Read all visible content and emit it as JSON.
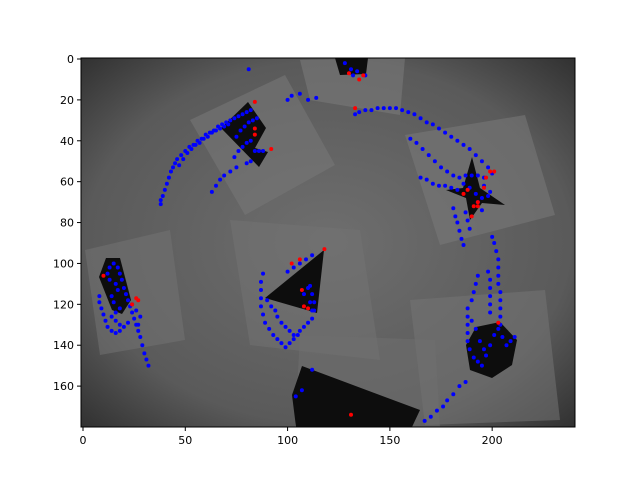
{
  "chart_data": {
    "type": "scatter",
    "title": "",
    "xlabel": "",
    "ylabel": "",
    "xlim": [
      0,
      240
    ],
    "ylim": [
      180,
      0
    ],
    "x_ticks": [
      "0",
      "50",
      "100",
      "150",
      "200"
    ],
    "y_ticks": [
      "0",
      "20",
      "40",
      "60",
      "80",
      "100",
      "120",
      "140",
      "160"
    ],
    "x_tick_values": [
      0,
      50,
      100,
      150,
      200
    ],
    "y_tick_values": [
      0,
      20,
      40,
      60,
      80,
      100,
      120,
      140,
      160
    ],
    "grid": false,
    "background": "grayscale camera image of black shapes on paper",
    "colors": {
      "blue": "#0000ff",
      "red": "#ff0000"
    },
    "series": [
      {
        "color": "#0000ff",
        "points": [
          [
            38,
            71
          ],
          [
            38,
            69
          ],
          [
            39,
            67
          ],
          [
            40,
            64
          ],
          [
            41,
            61
          ],
          [
            42,
            58
          ],
          [
            43,
            55
          ],
          [
            44,
            53
          ],
          [
            45,
            51
          ],
          [
            46,
            49
          ],
          [
            48,
            47
          ],
          [
            50,
            45
          ],
          [
            52,
            43
          ],
          [
            54,
            42
          ],
          [
            56,
            40
          ],
          [
            58,
            39
          ],
          [
            60,
            37
          ],
          [
            62,
            36
          ],
          [
            64,
            35
          ],
          [
            66,
            33
          ],
          [
            68,
            32
          ],
          [
            70,
            31
          ],
          [
            72,
            30
          ],
          [
            74,
            29
          ],
          [
            76,
            28
          ],
          [
            78,
            27
          ],
          [
            80,
            26
          ],
          [
            82,
            25
          ],
          [
            47,
            52
          ],
          [
            49,
            49
          ],
          [
            51,
            46
          ],
          [
            53,
            44
          ],
          [
            55,
            42
          ],
          [
            57,
            41
          ],
          [
            59,
            39
          ],
          [
            61,
            38
          ],
          [
            63,
            36
          ],
          [
            65,
            35
          ],
          [
            67,
            34
          ],
          [
            69,
            33
          ],
          [
            71,
            32
          ],
          [
            75,
            38
          ],
          [
            77,
            35
          ],
          [
            79,
            33
          ],
          [
            81,
            31
          ],
          [
            83,
            30
          ],
          [
            85,
            29
          ],
          [
            74,
            48
          ],
          [
            76,
            45
          ],
          [
            78,
            43
          ],
          [
            80,
            41
          ],
          [
            82,
            40
          ],
          [
            84,
            45
          ],
          [
            86,
            45
          ],
          [
            88,
            45
          ],
          [
            63,
            65
          ],
          [
            65,
            62
          ],
          [
            67,
            59
          ],
          [
            69,
            57
          ],
          [
            72,
            55
          ],
          [
            75,
            53
          ],
          [
            80,
            51
          ],
          [
            82,
            50
          ],
          [
            81,
            5
          ],
          [
            100,
            20
          ],
          [
            102,
            18
          ],
          [
            106,
            17
          ],
          [
            110,
            20
          ],
          [
            114,
            19
          ],
          [
            133,
            27
          ],
          [
            135,
            26
          ],
          [
            138,
            25
          ],
          [
            141,
            25
          ],
          [
            144,
            24
          ],
          [
            147,
            24
          ],
          [
            150,
            24
          ],
          [
            153,
            24
          ],
          [
            156,
            25
          ],
          [
            159,
            26
          ],
          [
            162,
            27
          ],
          [
            165,
            29
          ],
          [
            168,
            31
          ],
          [
            171,
            32
          ],
          [
            174,
            34
          ],
          [
            177,
            36
          ],
          [
            180,
            38
          ],
          [
            183,
            40
          ],
          [
            186,
            42
          ],
          [
            189,
            44
          ],
          [
            192,
            47
          ],
          [
            195,
            50
          ],
          [
            198,
            53
          ],
          [
            200,
            56
          ],
          [
            160,
            39
          ],
          [
            163,
            41
          ],
          [
            166,
            44
          ],
          [
            169,
            47
          ],
          [
            172,
            50
          ],
          [
            175,
            53
          ],
          [
            178,
            55
          ],
          [
            181,
            57
          ],
          [
            184,
            58
          ],
          [
            187,
            57
          ],
          [
            190,
            57
          ],
          [
            193,
            57
          ],
          [
            196,
            58
          ],
          [
            165,
            58
          ],
          [
            168,
            59
          ],
          [
            171,
            61
          ],
          [
            174,
            62
          ],
          [
            177,
            62
          ],
          [
            180,
            63
          ],
          [
            183,
            64
          ],
          [
            186,
            61
          ],
          [
            189,
            63
          ],
          [
            192,
            66
          ],
          [
            195,
            68
          ],
          [
            198,
            67
          ],
          [
            181,
            73
          ],
          [
            182,
            77
          ],
          [
            183,
            80
          ],
          [
            184,
            84
          ],
          [
            185,
            88
          ],
          [
            186,
            91
          ],
          [
            187,
            75
          ],
          [
            188,
            79
          ],
          [
            189,
            83
          ],
          [
            193,
            70
          ],
          [
            195,
            74
          ],
          [
            196,
            62
          ],
          [
            199,
            65
          ],
          [
            200,
            87
          ],
          [
            201,
            90
          ],
          [
            202,
            94
          ],
          [
            203,
            98
          ],
          [
            203,
            102
          ],
          [
            203,
            106
          ],
          [
            203,
            110
          ],
          [
            204,
            114
          ],
          [
            204,
            118
          ],
          [
            204,
            122
          ],
          [
            204,
            126
          ],
          [
            204,
            130
          ],
          [
            198,
            104
          ],
          [
            199,
            108
          ],
          [
            199,
            112
          ],
          [
            199,
            116
          ],
          [
            199,
            120
          ],
          [
            199,
            124
          ],
          [
            190,
            118
          ],
          [
            191,
            114
          ],
          [
            192,
            110
          ],
          [
            193,
            106
          ],
          [
            188,
            122
          ],
          [
            188,
            126
          ],
          [
            188,
            130
          ],
          [
            188,
            134
          ],
          [
            188,
            138
          ],
          [
            189,
            142
          ],
          [
            191,
            146
          ],
          [
            193,
            148
          ],
          [
            195,
            150
          ],
          [
            197,
            145
          ],
          [
            199,
            140
          ],
          [
            201,
            135
          ],
          [
            203,
            132
          ],
          [
            205,
            136
          ],
          [
            207,
            140
          ],
          [
            209,
            138
          ],
          [
            211,
            136
          ],
          [
            190,
            128
          ],
          [
            192,
            132
          ],
          [
            194,
            138
          ],
          [
            196,
            142
          ],
          [
            187,
            158
          ],
          [
            184,
            160
          ],
          [
            181,
            164
          ],
          [
            178,
            167
          ],
          [
            176,
            170
          ],
          [
            173,
            172
          ],
          [
            170,
            175
          ],
          [
            167,
            177
          ],
          [
            88,
            105
          ],
          [
            87,
            109
          ],
          [
            87,
            113
          ],
          [
            87,
            117
          ],
          [
            87,
            121
          ],
          [
            88,
            125
          ],
          [
            89,
            129
          ],
          [
            91,
            132
          ],
          [
            93,
            135
          ],
          [
            95,
            137
          ],
          [
            97,
            139
          ],
          [
            99,
            141
          ],
          [
            101,
            139
          ],
          [
            103,
            137
          ],
          [
            105,
            135
          ],
          [
            106,
            133
          ],
          [
            108,
            131
          ],
          [
            110,
            129
          ],
          [
            112,
            127
          ],
          [
            113,
            123
          ],
          [
            113,
            119
          ],
          [
            112,
            115
          ],
          [
            111,
            111
          ],
          [
            100,
            104
          ],
          [
            103,
            102
          ],
          [
            106,
            100
          ],
          [
            109,
            98
          ],
          [
            112,
            96
          ],
          [
            95,
            126
          ],
          [
            97,
            129
          ],
          [
            99,
            131
          ],
          [
            101,
            133
          ],
          [
            103,
            135
          ],
          [
            90,
            118
          ],
          [
            92,
            121
          ],
          [
            94,
            123
          ],
          [
            108,
            115
          ],
          [
            110,
            112
          ],
          [
            111,
            119
          ],
          [
            112,
            123
          ],
          [
            112,
            152
          ],
          [
            107,
            162
          ],
          [
            104,
            165
          ],
          [
            12,
            105
          ],
          [
            13,
            102
          ],
          [
            15,
            100
          ],
          [
            17,
            102
          ],
          [
            18,
            105
          ],
          [
            19,
            108
          ],
          [
            20,
            112
          ],
          [
            21,
            115
          ],
          [
            22,
            118
          ],
          [
            23,
            121
          ],
          [
            24,
            124
          ],
          [
            25,
            127
          ],
          [
            26,
            130
          ],
          [
            27,
            133
          ],
          [
            28,
            136
          ],
          [
            29,
            140
          ],
          [
            30,
            144
          ],
          [
            31,
            147
          ],
          [
            32,
            150
          ],
          [
            8,
            116
          ],
          [
            8,
            119
          ],
          [
            9,
            122
          ],
          [
            10,
            125
          ],
          [
            11,
            128
          ],
          [
            12,
            131
          ],
          [
            14,
            133
          ],
          [
            16,
            134
          ],
          [
            18,
            133
          ],
          [
            20,
            131
          ],
          [
            22,
            129
          ],
          [
            14,
            126
          ],
          [
            16,
            124
          ],
          [
            18,
            122
          ],
          [
            14,
            116
          ],
          [
            15,
            119
          ],
          [
            16,
            110
          ],
          [
            17,
            113
          ],
          [
            16,
            128
          ],
          [
            18,
            130
          ],
          [
            13,
            108
          ],
          [
            28,
            126
          ],
          [
            27,
            130
          ],
          [
            26,
            123
          ],
          [
            24,
            120
          ],
          [
            132,
            8
          ],
          [
            134,
            6
          ],
          [
            138,
            8
          ],
          [
            128,
            2
          ],
          [
            131,
            5
          ]
        ]
      },
      {
        "color": "#ff0000",
        "points": [
          [
            84,
            21
          ],
          [
            84,
            34
          ],
          [
            84,
            37
          ],
          [
            92,
            44
          ],
          [
            133,
            24
          ],
          [
            137,
            8
          ],
          [
            135,
            10
          ],
          [
            130,
            7
          ],
          [
            199,
            55
          ],
          [
            201,
            55
          ],
          [
            197,
            58
          ],
          [
            196,
            63
          ],
          [
            193,
            70
          ],
          [
            191,
            72
          ],
          [
            188,
            64
          ],
          [
            186,
            66
          ],
          [
            190,
            77
          ],
          [
            193,
            72
          ],
          [
            118,
            93
          ],
          [
            106,
            98
          ],
          [
            102,
            100
          ],
          [
            107,
            113
          ],
          [
            108,
            121
          ],
          [
            110,
            122
          ],
          [
            10,
            106
          ],
          [
            27,
            118
          ],
          [
            26,
            117
          ],
          [
            24,
            120
          ],
          [
            203,
            129
          ],
          [
            131,
            174
          ]
        ]
      }
    ]
  }
}
